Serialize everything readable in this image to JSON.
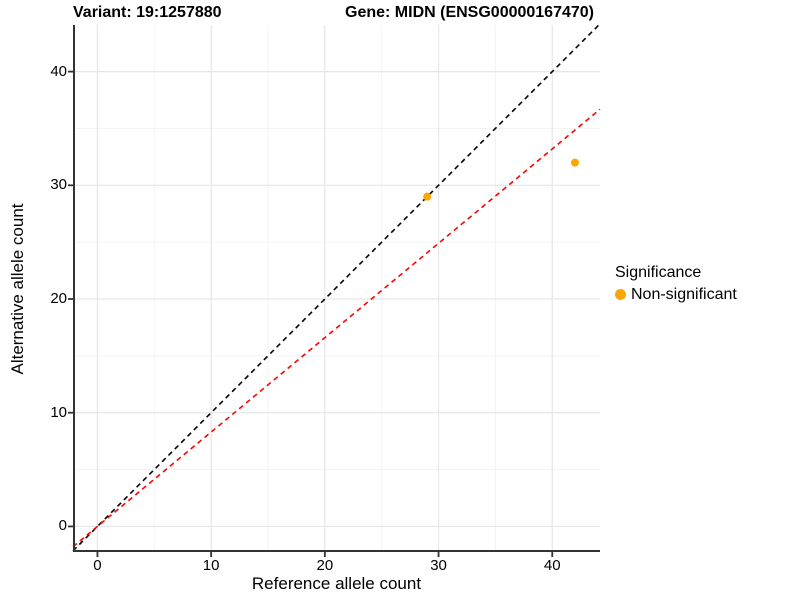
{
  "header": {
    "title_left": "Variant: 19:1257880",
    "title_right": "Gene: MIDN (ENSG00000167470)"
  },
  "chart_data": {
    "type": "scatter",
    "title": "Variant: 19:1257880 — Gene: MIDN (ENSG00000167470)",
    "xlabel": "Reference allele count",
    "ylabel": "Alternative allele count",
    "xlim": [
      -2.15,
      44.2
    ],
    "ylim": [
      -2.25,
      44.1
    ],
    "xticks": [
      0,
      10,
      20,
      30,
      40
    ],
    "yticks": [
      0,
      10,
      20,
      30,
      40
    ],
    "xticks_minor": [
      5,
      15,
      25,
      35
    ],
    "yticks_minor": [
      5,
      15,
      25,
      35
    ],
    "grid": "major-and-minor",
    "points": [
      {
        "x": 29,
        "y": 29,
        "series": "Non-significant"
      },
      {
        "x": 42,
        "y": 32,
        "series": "Non-significant"
      }
    ],
    "point_color": "#FFA500",
    "point_radius_px": 4,
    "lines": [
      {
        "name": "identity-line",
        "equation": "y = x",
        "slope": 1,
        "intercept": 0,
        "color": "#000000",
        "dashed": true
      },
      {
        "name": "expected-ratio-line",
        "equation": "y = 0.83x",
        "slope": 0.83,
        "intercept": 0,
        "color": "#FF0000",
        "dashed": true
      }
    ],
    "legend": {
      "title": "Significance",
      "position": "right",
      "items": [
        {
          "label": "Non-significant",
          "color": "#FFA500"
        }
      ]
    }
  },
  "colors": {
    "background": "#FFFFFF",
    "axis_line": "#333333",
    "grid_major": "#E6E6E6",
    "grid_minor": "#F2F2F2",
    "text": "#000000"
  }
}
